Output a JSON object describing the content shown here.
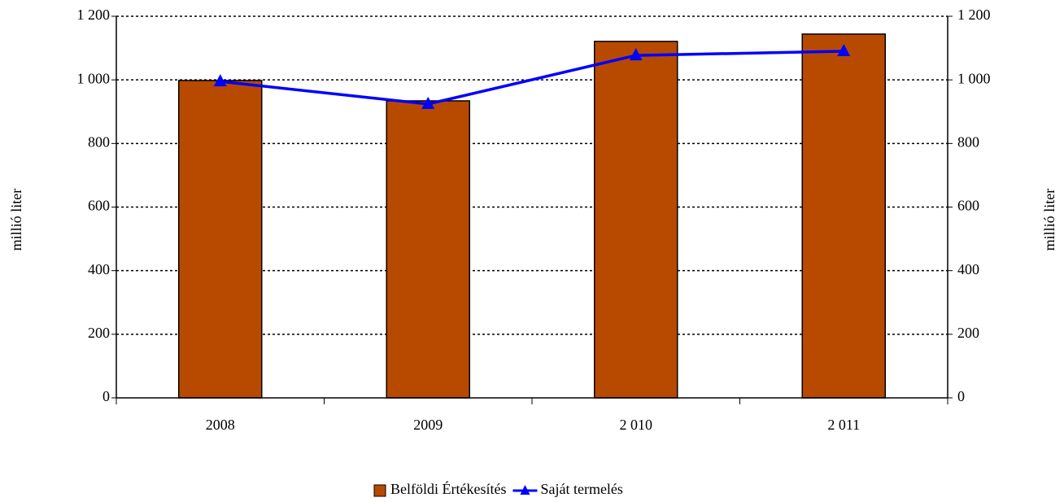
{
  "chart_data": {
    "type": "bar",
    "categories": [
      "2008",
      "2009",
      "2 010",
      "2 011"
    ],
    "series": [
      {
        "name": "Belföldi Értékesítés",
        "type": "bar",
        "color": "#b84a00",
        "values": [
          998,
          934,
          1121,
          1144
        ]
      },
      {
        "name": "Saját termelés",
        "type": "line",
        "axis": "y2",
        "color": "#0000ff",
        "values": [
          995,
          924,
          1077,
          1090
        ]
      }
    ],
    "ylabel": "millió liter",
    "y2label": "millió liter",
    "ylim": [
      0,
      1200
    ],
    "yticks": [
      0,
      200,
      400,
      600,
      800,
      {
        "value": 1000,
        "label": "1 000"
      },
      {
        "value": 1200,
        "label": "1 200"
      }
    ],
    "y2lim": [
      0,
      1200
    ],
    "y2ticks": [
      0,
      200,
      400,
      600,
      800,
      {
        "value": 1000,
        "label": "1 000"
      },
      {
        "value": 1200,
        "label": "1 200"
      }
    ],
    "grid": true,
    "legend": "bottom"
  }
}
